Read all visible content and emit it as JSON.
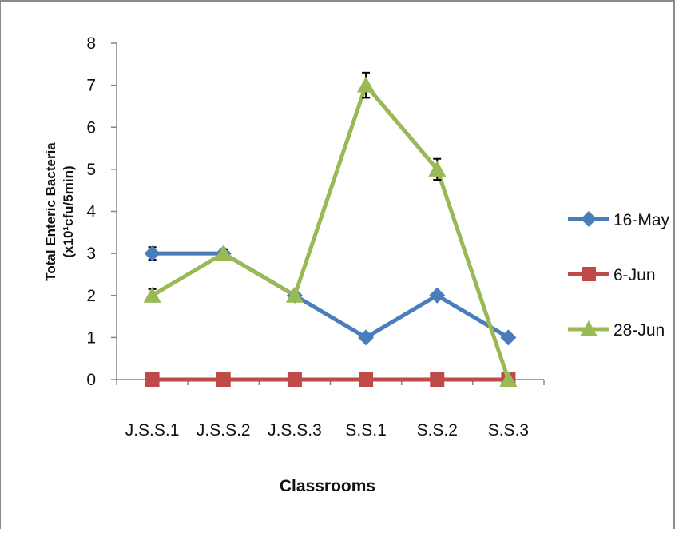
{
  "chart_data": {
    "type": "line",
    "categories": [
      "J.S.S.1",
      "J.S.S.2",
      "J.S.S.3",
      "S.S.1",
      "S.S.2",
      "S.S.3"
    ],
    "series": [
      {
        "name": "16-May",
        "values": [
          3,
          3,
          2,
          1,
          2,
          1
        ],
        "error": [
          0.15,
          0.1,
          0,
          0,
          0,
          0
        ],
        "color": "#4a7ebb",
        "marker": "diamond"
      },
      {
        "name": "6-Jun",
        "values": [
          0,
          0,
          0,
          0,
          0,
          0
        ],
        "error": [
          0,
          0,
          0,
          0,
          0,
          0
        ],
        "color": "#be4b48",
        "marker": "square"
      },
      {
        "name": "28-Jun",
        "values": [
          2,
          3,
          2,
          7,
          5,
          0
        ],
        "error": [
          0.15,
          0.1,
          0,
          0.3,
          0.25,
          0
        ],
        "color": "#98b954",
        "marker": "triangle"
      }
    ],
    "ylabel_line1": "Total Enteric Bacteria",
    "ylabel_line2": "(x10¹cfu/5min)",
    "xlabel": "Classrooms",
    "yticks": [
      "0",
      "1",
      "2",
      "3",
      "4",
      "5",
      "6",
      "7",
      "8"
    ],
    "ylim": [
      0,
      8
    ],
    "grid": false,
    "legend_position": "right"
  }
}
